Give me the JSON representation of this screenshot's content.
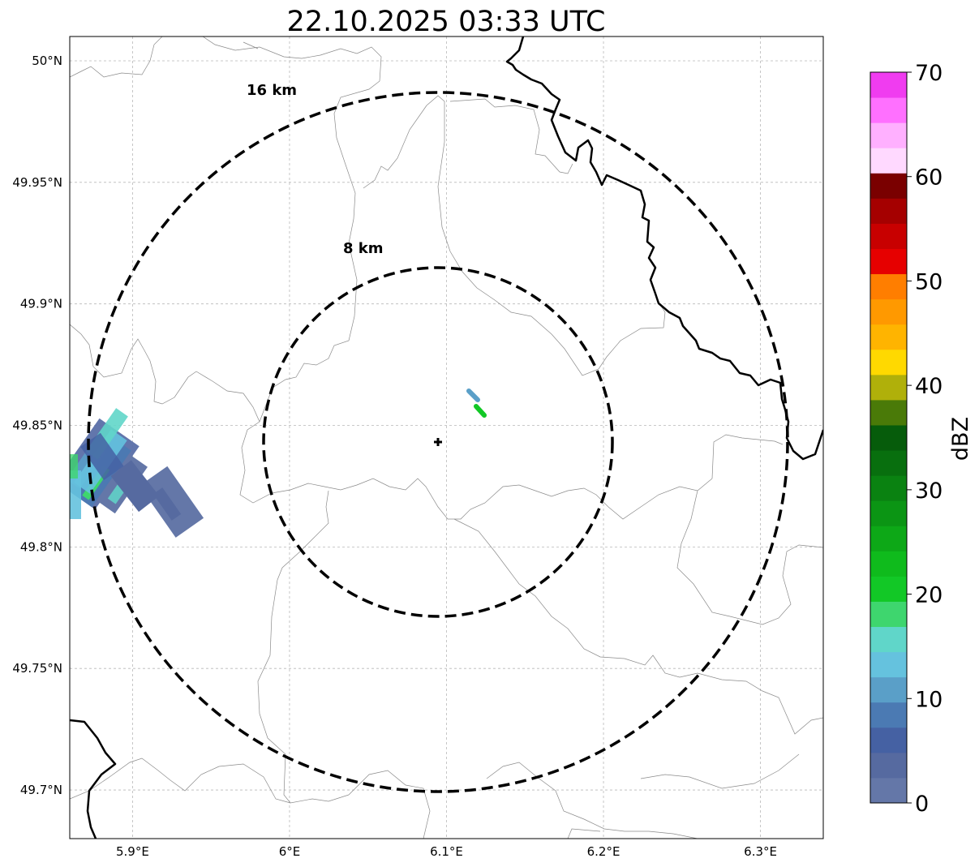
{
  "map": {
    "title": "22.10.2025 03:33 UTC",
    "lon_ticks": [
      {
        "value": 5.9,
        "label": "5.9°E"
      },
      {
        "value": 6.0,
        "label": "6°E"
      },
      {
        "value": 6.1,
        "label": "6.1°E"
      },
      {
        "value": 6.2,
        "label": "6.2°E"
      },
      {
        "value": 6.3,
        "label": "6.3°E"
      }
    ],
    "lat_ticks": [
      {
        "value": 50.0,
        "label": "50°N"
      },
      {
        "value": 49.95,
        "label": "49.95°N"
      },
      {
        "value": 49.9,
        "label": "49.9°N"
      },
      {
        "value": 49.85,
        "label": "49.85°N"
      },
      {
        "value": 49.8,
        "label": "49.8°N"
      },
      {
        "value": 49.75,
        "label": "49.75°N"
      },
      {
        "value": 49.7,
        "label": "49.7°N"
      }
    ],
    "extent": {
      "lon_min": 5.86,
      "lon_max": 6.34,
      "lat_min": 49.68,
      "lat_max": 50.01
    },
    "radar_site": {
      "lon": 6.094,
      "lat": 49.843
    },
    "range_rings": [
      {
        "radius_km": 8,
        "label": "8 km"
      },
      {
        "radius_km": 16,
        "label": "16 km"
      }
    ],
    "gridlines": true
  },
  "colorbar": {
    "label": "dBZ",
    "min": 0,
    "max": 70,
    "ticks": [
      "0",
      "10",
      "20",
      "30",
      "40",
      "50",
      "60",
      "70"
    ],
    "colors": [
      "#6477a8",
      "#566aa0",
      "#4561a3",
      "#4b7ab3",
      "#5a9fc8",
      "#65c2de",
      "#60d6c9",
      "#3ed66e",
      "#12c826",
      "#0fbb1c",
      "#0da817",
      "#0b9514",
      "#0a8211",
      "#086f0e",
      "#065c0b",
      "#4a7a08",
      "#b0b00a",
      "#ffd900",
      "#ffb400",
      "#ff9900",
      "#ff7e00",
      "#e60000",
      "#c80000",
      "#a50000",
      "#7a0000",
      "#ffd9ff",
      "#ffb0ff",
      "#ff70ff",
      "#f03cf0"
    ]
  },
  "echoes": [
    {
      "name": "echo-cluster-west",
      "dbz_range": [
        2,
        20
      ]
    },
    {
      "name": "echo-small-north-east",
      "dbz_range": [
        11,
        24
      ]
    }
  ]
}
